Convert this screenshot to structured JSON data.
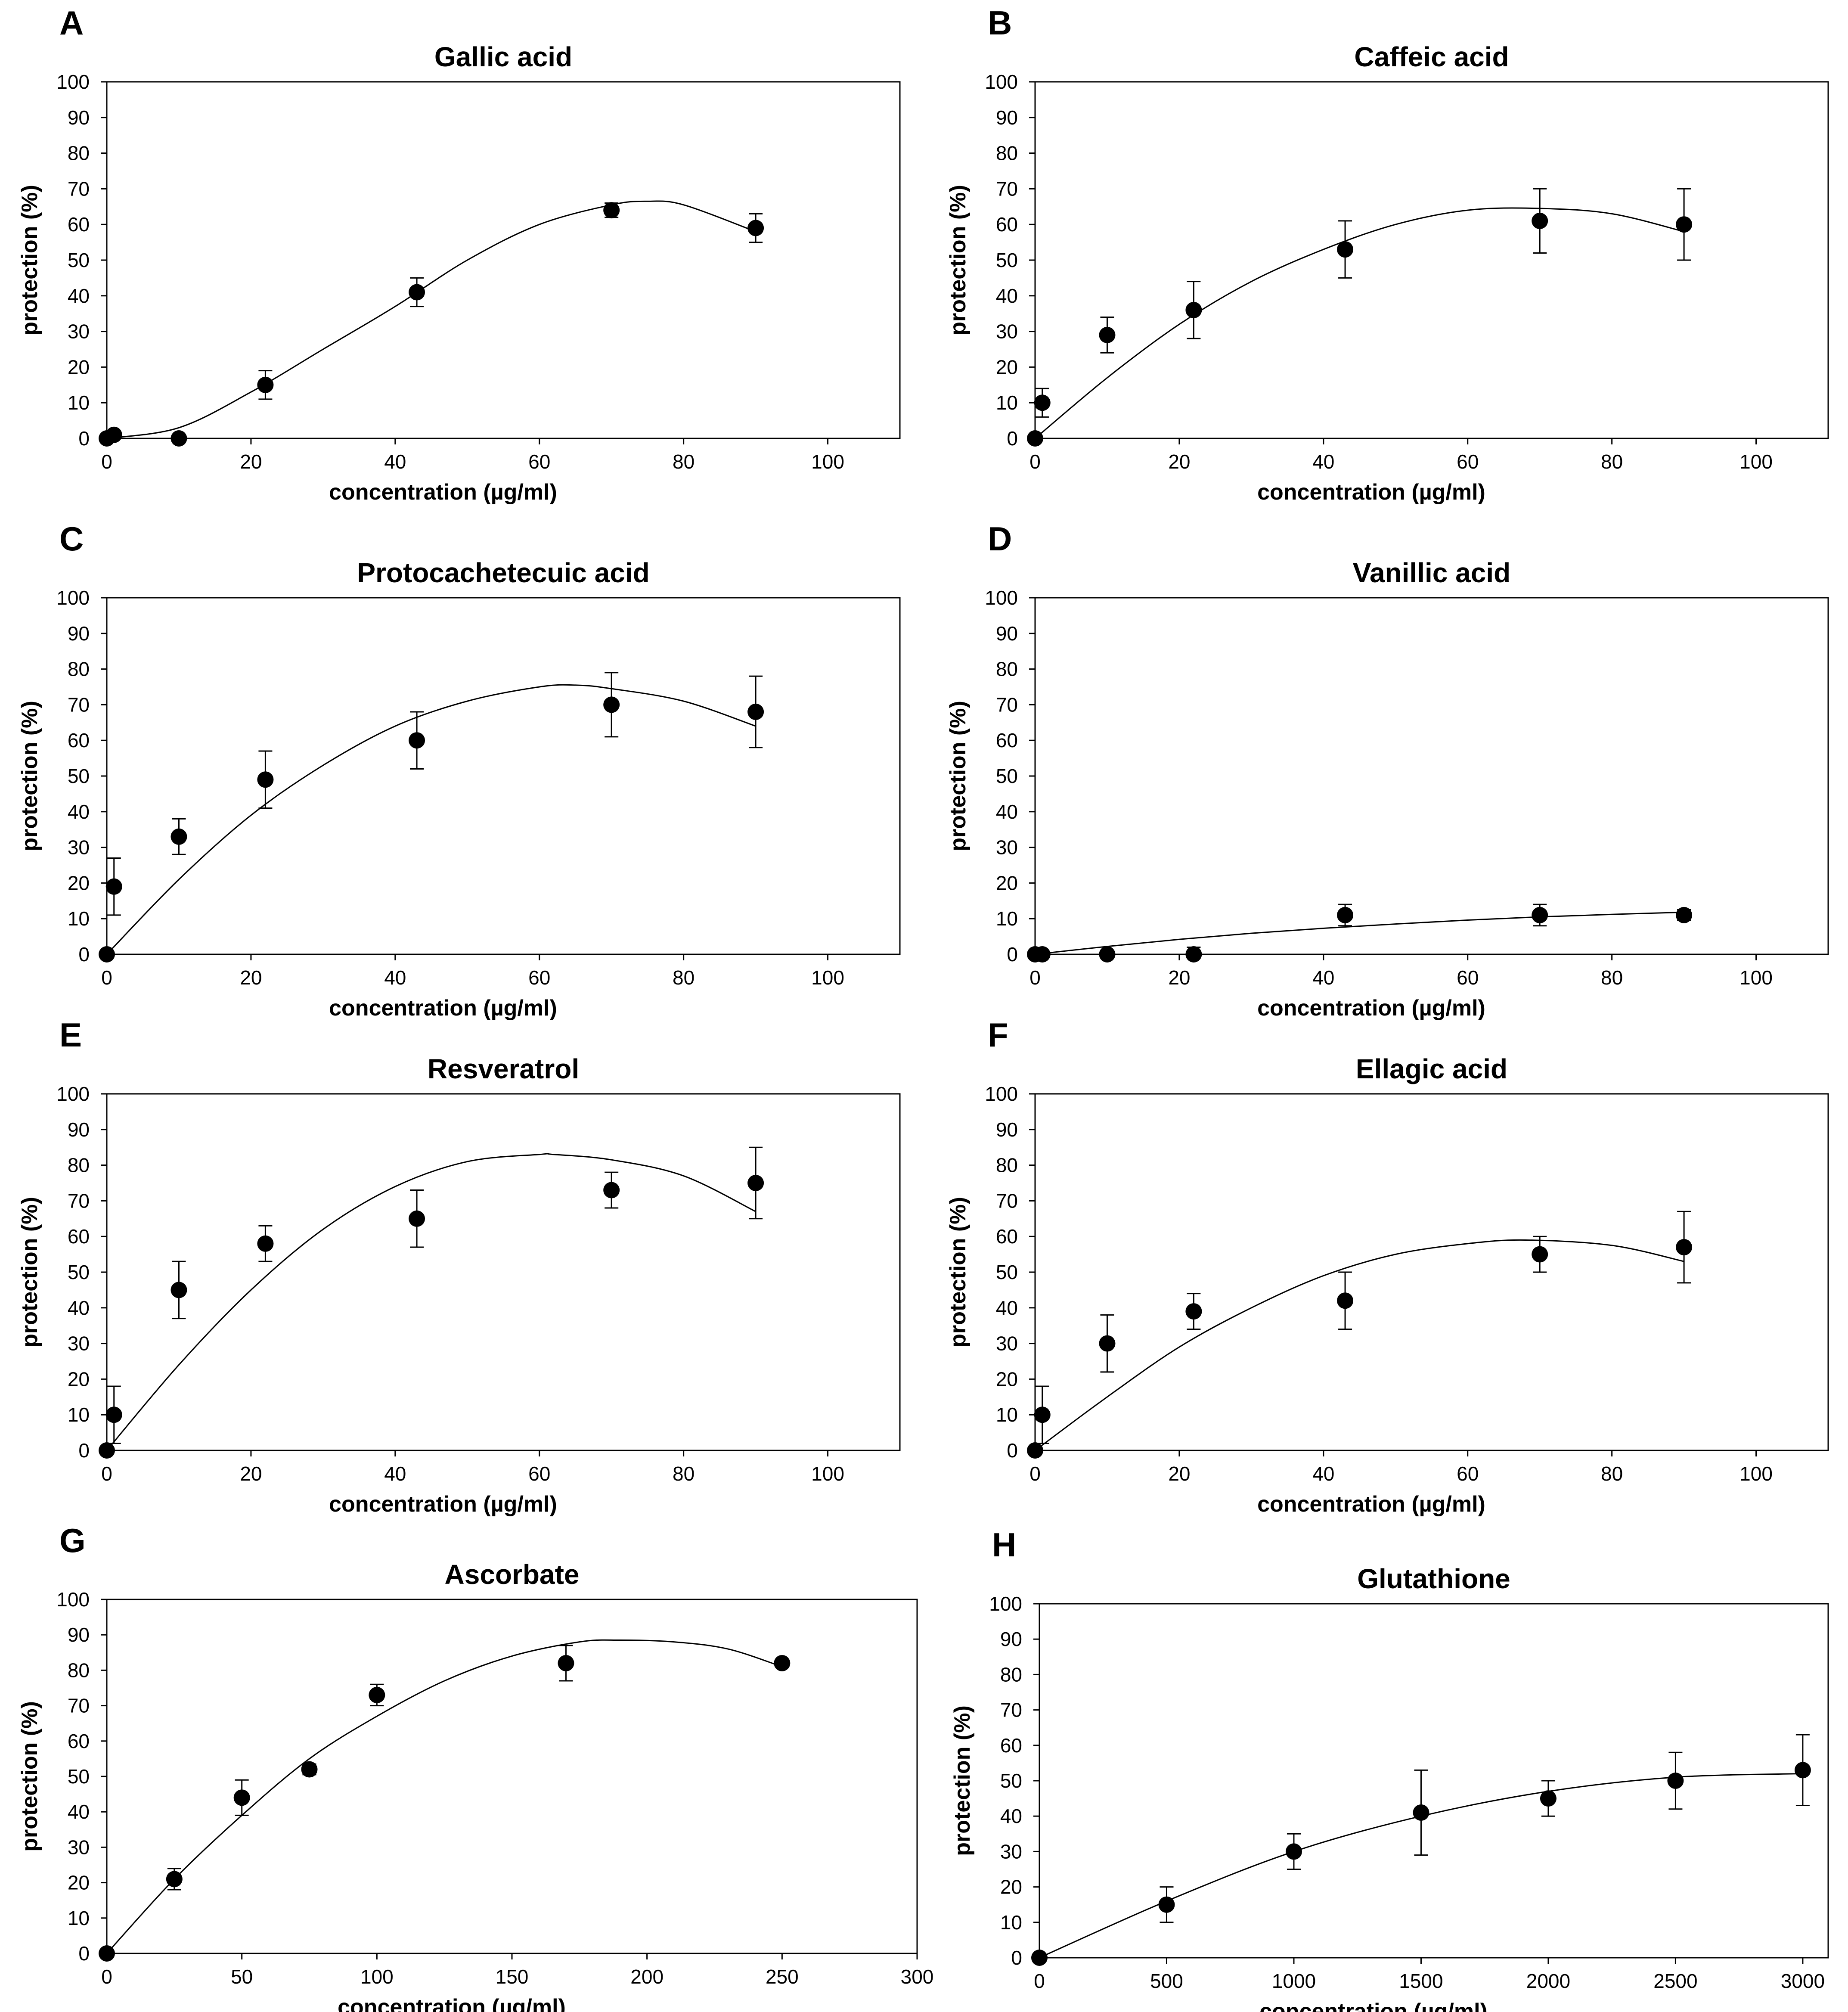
{
  "figure": {
    "background": "#ffffff",
    "ink": "#000000"
  },
  "chart_data": [
    {
      "panel": "A",
      "type": "scatter",
      "title": "Gallic acid",
      "xlabel": "concentration (µg/ml)",
      "ylabel": "protection (%)",
      "xlim": [
        0,
        110
      ],
      "ylim": [
        0,
        100
      ],
      "xticks": [
        0,
        20,
        40,
        60,
        80,
        100
      ],
      "yticks": [
        0,
        10,
        20,
        30,
        40,
        50,
        60,
        70,
        80,
        90,
        100
      ],
      "points": [
        {
          "x": 0,
          "y": 0,
          "err": 0
        },
        {
          "x": 1,
          "y": 1,
          "err": 0
        },
        {
          "x": 10,
          "y": 0,
          "err": 0
        },
        {
          "x": 22,
          "y": 15,
          "err": 4
        },
        {
          "x": 43,
          "y": 41,
          "err": 4
        },
        {
          "x": 70,
          "y": 64,
          "err": 2
        },
        {
          "x": 90,
          "y": 59,
          "err": 4
        }
      ],
      "fit": {
        "x": [
          0,
          10,
          20,
          30,
          40,
          50,
          60,
          70,
          75,
          80,
          90
        ],
        "y": [
          0,
          3,
          13,
          25,
          37,
          50,
          60,
          65.5,
          66.5,
          65.5,
          58
        ]
      }
    },
    {
      "panel": "B",
      "type": "scatter",
      "title": "Caffeic acid",
      "xlabel": "concentration (µg/ml)",
      "ylabel": "protection (%)",
      "xlim": [
        0,
        110
      ],
      "ylim": [
        0,
        100
      ],
      "xticks": [
        0,
        20,
        40,
        60,
        80,
        100
      ],
      "yticks": [
        0,
        10,
        20,
        30,
        40,
        50,
        60,
        70,
        80,
        90,
        100
      ],
      "points": [
        {
          "x": 0,
          "y": 0,
          "err": 0
        },
        {
          "x": 1,
          "y": 10,
          "err": 4
        },
        {
          "x": 10,
          "y": 29,
          "err": 5
        },
        {
          "x": 22,
          "y": 36,
          "err": 8
        },
        {
          "x": 43,
          "y": 53,
          "err": 8
        },
        {
          "x": 70,
          "y": 61,
          "err": 9
        },
        {
          "x": 90,
          "y": 60,
          "err": 10
        }
      ],
      "fit": {
        "x": [
          0,
          10,
          20,
          30,
          40,
          50,
          60,
          70,
          80,
          90
        ],
        "y": [
          0,
          17,
          32,
          44,
          53,
          60,
          64,
          64.5,
          63,
          58
        ]
      }
    },
    {
      "panel": "C",
      "type": "scatter",
      "title": "Protocachetecuic acid",
      "xlabel": "concentration (µg/ml)",
      "ylabel": "protection (%)",
      "xlim": [
        0,
        110
      ],
      "ylim": [
        0,
        100
      ],
      "xticks": [
        0,
        20,
        40,
        60,
        80,
        100
      ],
      "yticks": [
        0,
        10,
        20,
        30,
        40,
        50,
        60,
        70,
        80,
        90,
        100
      ],
      "points": [
        {
          "x": 0,
          "y": 0,
          "err": 0
        },
        {
          "x": 1,
          "y": 19,
          "err": 8
        },
        {
          "x": 10,
          "y": 33,
          "err": 5
        },
        {
          "x": 22,
          "y": 49,
          "err": 8
        },
        {
          "x": 43,
          "y": 60,
          "err": 8
        },
        {
          "x": 70,
          "y": 70,
          "err": 9
        },
        {
          "x": 90,
          "y": 68,
          "err": 10
        }
      ],
      "fit": {
        "x": [
          0,
          10,
          20,
          30,
          40,
          50,
          60,
          65,
          70,
          80,
          90
        ],
        "y": [
          0,
          21,
          39,
          53,
          64,
          71,
          75,
          75.5,
          74.5,
          71,
          64
        ]
      }
    },
    {
      "panel": "D",
      "type": "scatter",
      "title": "Vanillic acid",
      "xlabel": "concentration (µg/ml)",
      "ylabel": "protection (%)",
      "xlim": [
        0,
        110
      ],
      "ylim": [
        0,
        100
      ],
      "xticks": [
        0,
        20,
        40,
        60,
        80,
        100
      ],
      "yticks": [
        0,
        10,
        20,
        30,
        40,
        50,
        60,
        70,
        80,
        90,
        100
      ],
      "points": [
        {
          "x": 0,
          "y": 0,
          "err": 0
        },
        {
          "x": 1,
          "y": 0,
          "err": 0
        },
        {
          "x": 10,
          "y": 0,
          "err": 0
        },
        {
          "x": 22,
          "y": 0,
          "err": 2
        },
        {
          "x": 43,
          "y": 11,
          "err": 3
        },
        {
          "x": 70,
          "y": 11,
          "err": 3
        },
        {
          "x": 90,
          "y": 11,
          "err": 1.5
        }
      ],
      "fit": {
        "x": [
          0,
          10,
          20,
          30,
          40,
          50,
          60,
          70,
          80,
          90
        ],
        "y": [
          0,
          2.2,
          4.2,
          5.9,
          7.3,
          8.5,
          9.6,
          10.5,
          11.2,
          11.8
        ]
      }
    },
    {
      "panel": "E",
      "type": "scatter",
      "title": "Resveratrol",
      "xlabel": "concentration (µg/ml)",
      "ylabel": "protection (%)",
      "xlim": [
        0,
        110
      ],
      "ylim": [
        0,
        100
      ],
      "xticks": [
        0,
        20,
        40,
        60,
        80,
        100
      ],
      "yticks": [
        0,
        10,
        20,
        30,
        40,
        50,
        60,
        70,
        80,
        90,
        100
      ],
      "points": [
        {
          "x": 0,
          "y": 0,
          "err": 0
        },
        {
          "x": 1,
          "y": 10,
          "err": 8
        },
        {
          "x": 10,
          "y": 45,
          "err": 8
        },
        {
          "x": 22,
          "y": 58,
          "err": 5
        },
        {
          "x": 43,
          "y": 65,
          "err": 8
        },
        {
          "x": 70,
          "y": 73,
          "err": 5
        },
        {
          "x": 90,
          "y": 75,
          "err": 10
        }
      ],
      "fit": {
        "x": [
          0,
          10,
          20,
          30,
          40,
          50,
          60,
          62,
          70,
          80,
          90
        ],
        "y": [
          0,
          24,
          45,
          62,
          74,
          81,
          83,
          83,
          81.5,
          77,
          67
        ]
      }
    },
    {
      "panel": "F",
      "type": "scatter",
      "title": "Ellagic acid",
      "xlabel": "concentration (µg/ml)",
      "ylabel": "protection (%)",
      "xlim": [
        0,
        110
      ],
      "ylim": [
        0,
        100
      ],
      "xticks": [
        0,
        20,
        40,
        60,
        80,
        100
      ],
      "yticks": [
        0,
        10,
        20,
        30,
        40,
        50,
        60,
        70,
        80,
        90,
        100
      ],
      "points": [
        {
          "x": 0,
          "y": 0,
          "err": 0
        },
        {
          "x": 1,
          "y": 10,
          "err": 8
        },
        {
          "x": 10,
          "y": 30,
          "err": 8
        },
        {
          "x": 22,
          "y": 39,
          "err": 5
        },
        {
          "x": 43,
          "y": 42,
          "err": 8
        },
        {
          "x": 70,
          "y": 55,
          "err": 5
        },
        {
          "x": 90,
          "y": 57,
          "err": 10
        }
      ],
      "fit": {
        "x": [
          0,
          10,
          20,
          30,
          40,
          50,
          60,
          68,
          80,
          90
        ],
        "y": [
          0,
          15,
          29,
          40,
          49,
          55,
          58,
          59,
          57.5,
          53
        ]
      }
    },
    {
      "panel": "G",
      "type": "scatter",
      "title": "Ascorbate",
      "xlabel": "concentration (µg/ml)",
      "ylabel": "protection (%)",
      "xlim": [
        0,
        300
      ],
      "ylim": [
        0,
        100
      ],
      "xticks": [
        0,
        50,
        100,
        150,
        200,
        250,
        300
      ],
      "yticks": [
        0,
        10,
        20,
        30,
        40,
        50,
        60,
        70,
        80,
        90,
        100
      ],
      "points": [
        {
          "x": 0,
          "y": 0,
          "err": 0
        },
        {
          "x": 25,
          "y": 21,
          "err": 3
        },
        {
          "x": 50,
          "y": 44,
          "err": 5
        },
        {
          "x": 75,
          "y": 52,
          "err": 1.5
        },
        {
          "x": 100,
          "y": 73,
          "err": 3
        },
        {
          "x": 170,
          "y": 82,
          "err": 5
        },
        {
          "x": 250,
          "y": 82,
          "err": 0
        }
      ],
      "fit": {
        "x": [
          0,
          25,
          50,
          75,
          100,
          125,
          150,
          175,
          190,
          210,
          230,
          250
        ],
        "y": [
          0,
          21,
          39,
          55,
          67,
          77,
          84,
          88,
          88.5,
          88,
          86,
          81
        ]
      }
    },
    {
      "panel": "H",
      "type": "scatter",
      "title": "Glutathione",
      "xlabel": "concentration (µg/ml)",
      "ylabel": "protection (%)",
      "xlim": [
        0,
        3100
      ],
      "ylim": [
        0,
        100
      ],
      "xticks": [
        0,
        500,
        1000,
        1500,
        2000,
        2500,
        3000
      ],
      "yticks": [
        0,
        10,
        20,
        30,
        40,
        50,
        60,
        70,
        80,
        90,
        100
      ],
      "points": [
        {
          "x": 0,
          "y": 0,
          "err": 0
        },
        {
          "x": 500,
          "y": 15,
          "err": 5
        },
        {
          "x": 1000,
          "y": 30,
          "err": 5
        },
        {
          "x": 1500,
          "y": 41,
          "err": 12
        },
        {
          "x": 2000,
          "y": 45,
          "err": 5
        },
        {
          "x": 2500,
          "y": 50,
          "err": 8
        },
        {
          "x": 3000,
          "y": 53,
          "err": 10
        }
      ],
      "fit": {
        "x": [
          0,
          500,
          1000,
          1500,
          2000,
          2500,
          3000
        ],
        "y": [
          0,
          16,
          30,
          40,
          47,
          51,
          52
        ]
      }
    }
  ]
}
